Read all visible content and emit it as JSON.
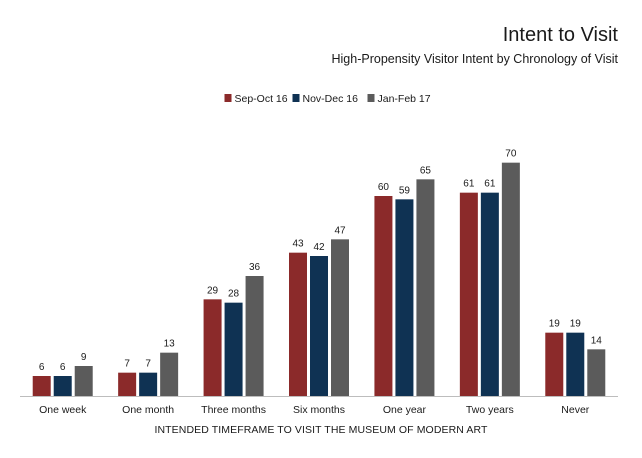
{
  "chart_data": {
    "type": "bar",
    "title": "Intent to Visit",
    "subtitle": "High-Propensity Visitor Intent by Chronology of Visit",
    "xlabel": "INTENDED TIMEFRAME TO VISIT THE MUSEUM OF MODERN ART",
    "ylabel": "",
    "ylim": [
      0,
      75
    ],
    "grid": false,
    "legend_position": "top-center",
    "categories": [
      "One week",
      "One month",
      "Three months",
      "Six months",
      "One year",
      "Two years",
      "Never"
    ],
    "series": [
      {
        "name": "Sep-Oct 16",
        "color": "#8b2a2a",
        "values": [
          6,
          7,
          29,
          43,
          60,
          61,
          19
        ]
      },
      {
        "name": "Nov-Dec 16",
        "color": "#0f3253",
        "values": [
          6,
          7,
          28,
          42,
          59,
          61,
          19
        ]
      },
      {
        "name": "Jan-Feb 17",
        "color": "#5b5b5b",
        "values": [
          9,
          13,
          36,
          47,
          65,
          70,
          14
        ]
      }
    ]
  }
}
